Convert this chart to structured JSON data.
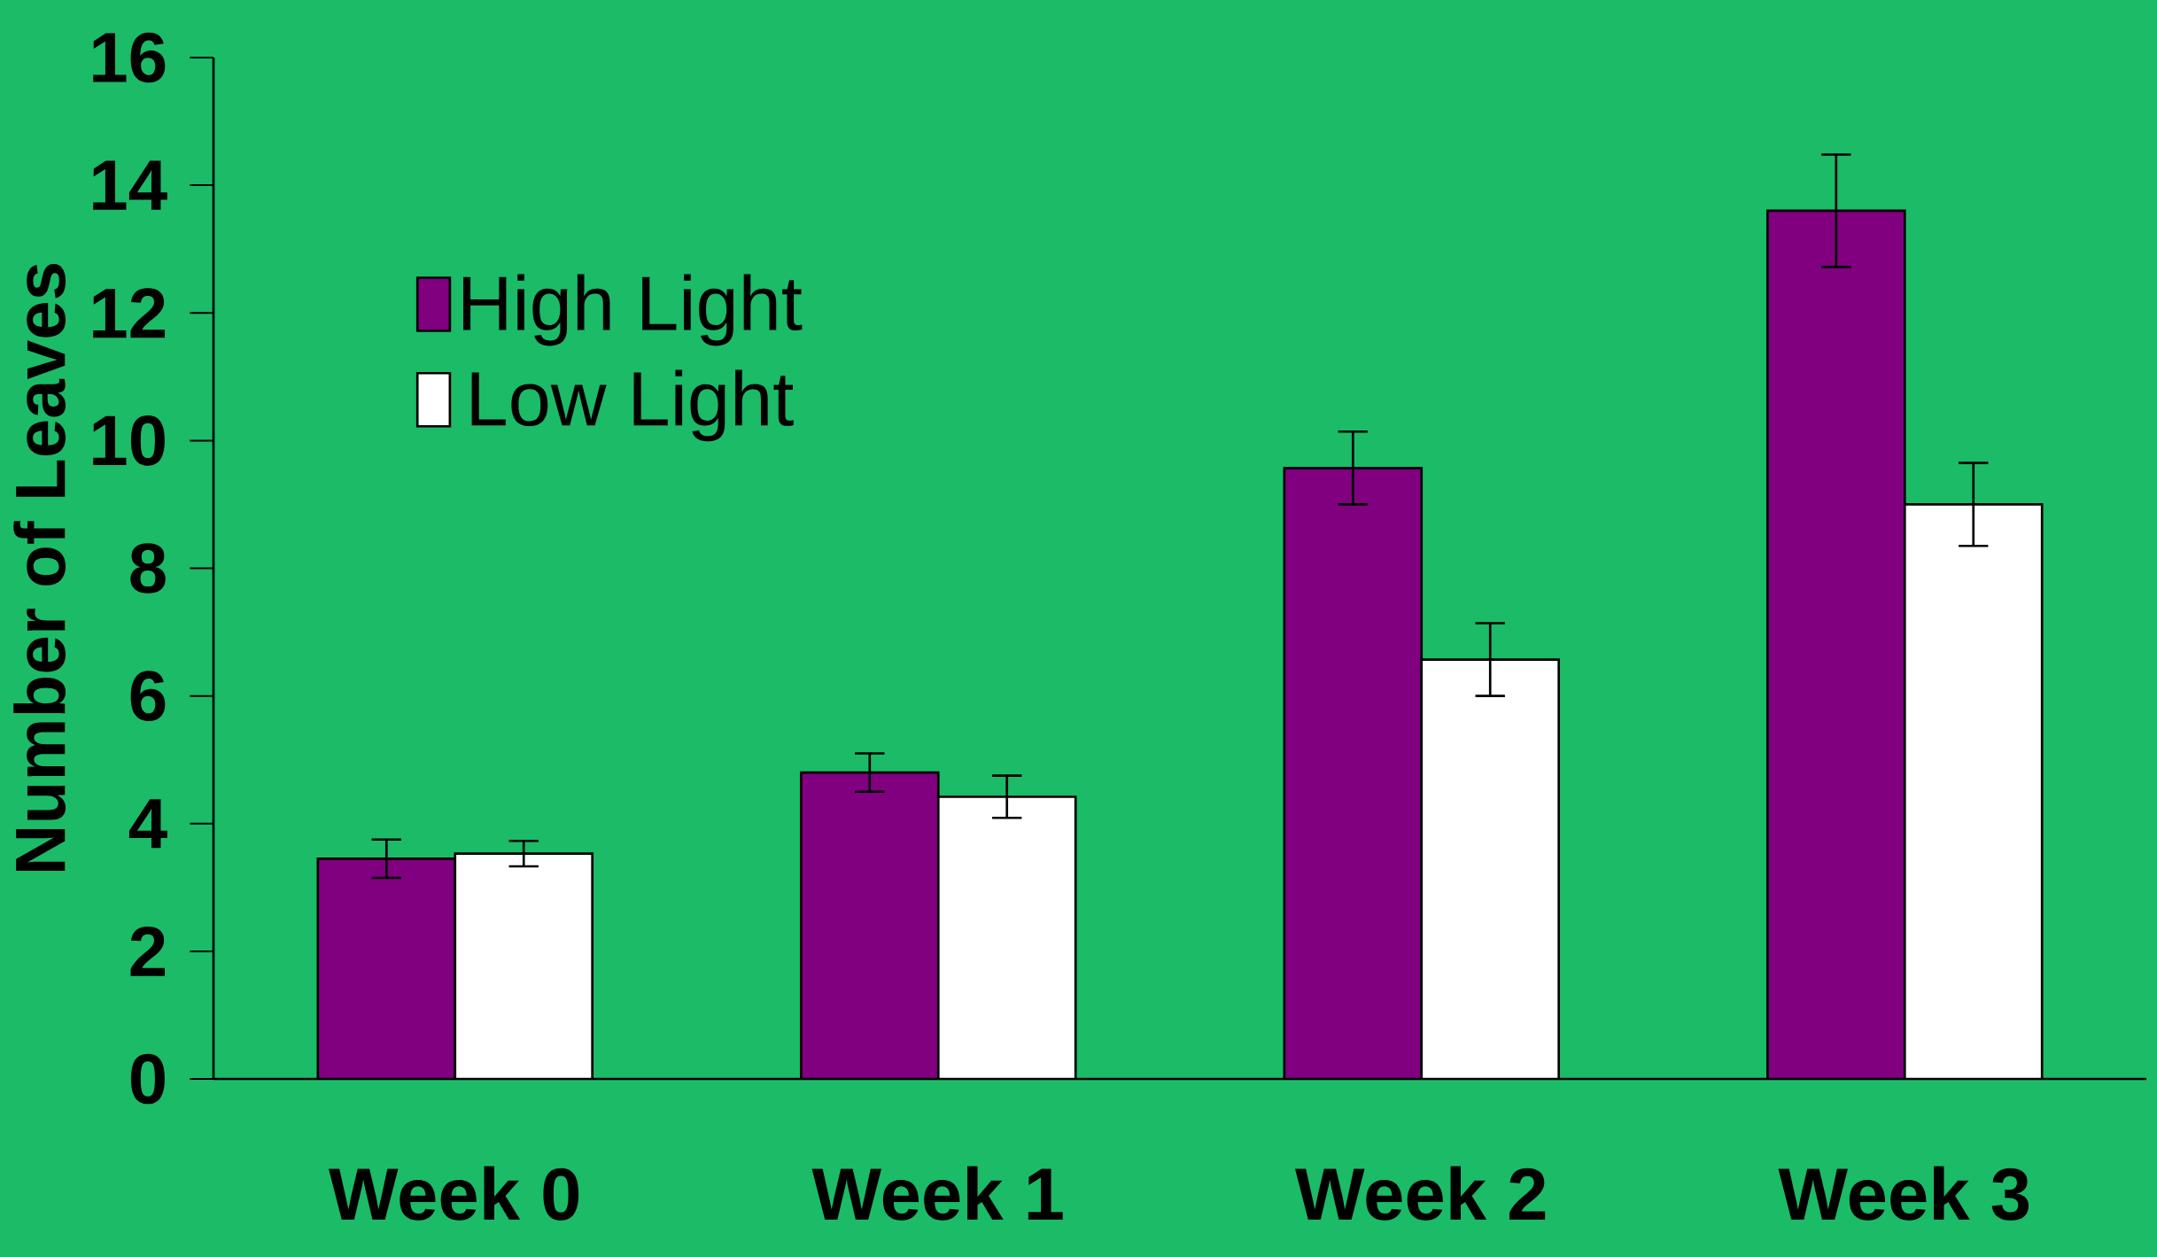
{
  "chart_data": {
    "type": "bar",
    "ylabel": "Number of Leaves",
    "categories": [
      "Week 0",
      "Week 1",
      "Week 2",
      "Week 3"
    ],
    "series": [
      {
        "name": "High Light",
        "color": "#800080",
        "values": [
          3.45,
          4.8,
          9.57,
          13.6
        ],
        "errors": [
          0.3,
          0.3,
          0.57,
          0.88
        ]
      },
      {
        "name": "Low Light",
        "color": "#ffffff",
        "values": [
          3.53,
          4.42,
          6.57,
          9.0
        ],
        "errors": [
          0.2,
          0.33,
          0.57,
          0.65
        ]
      }
    ],
    "ylim": [
      0,
      16
    ],
    "yticks": [
      0,
      2,
      4,
      6,
      8,
      10,
      12,
      14,
      16
    ],
    "grid": false,
    "legend": "top left"
  }
}
